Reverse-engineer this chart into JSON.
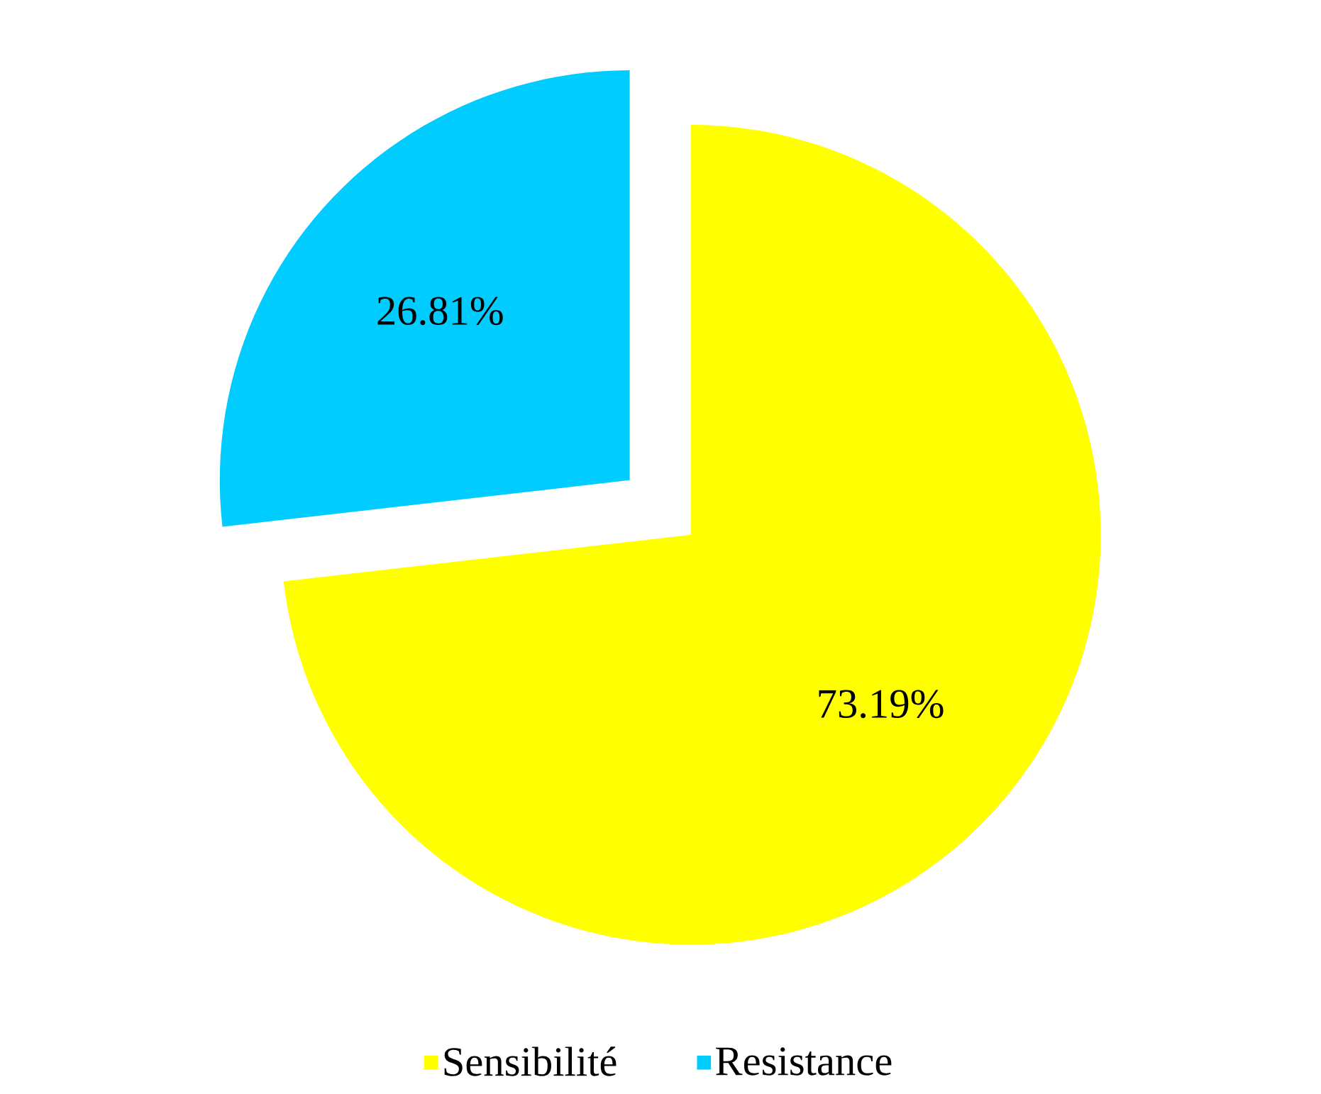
{
  "chart_data": {
    "type": "pie",
    "categories": [
      "Sensibilité",
      "Resistance"
    ],
    "values": [
      73.19,
      26.81
    ],
    "colors": [
      "#ffff00",
      "#00ccff"
    ],
    "value_labels": [
      "73.19%",
      "26.81%"
    ],
    "legend": "bottom"
  }
}
